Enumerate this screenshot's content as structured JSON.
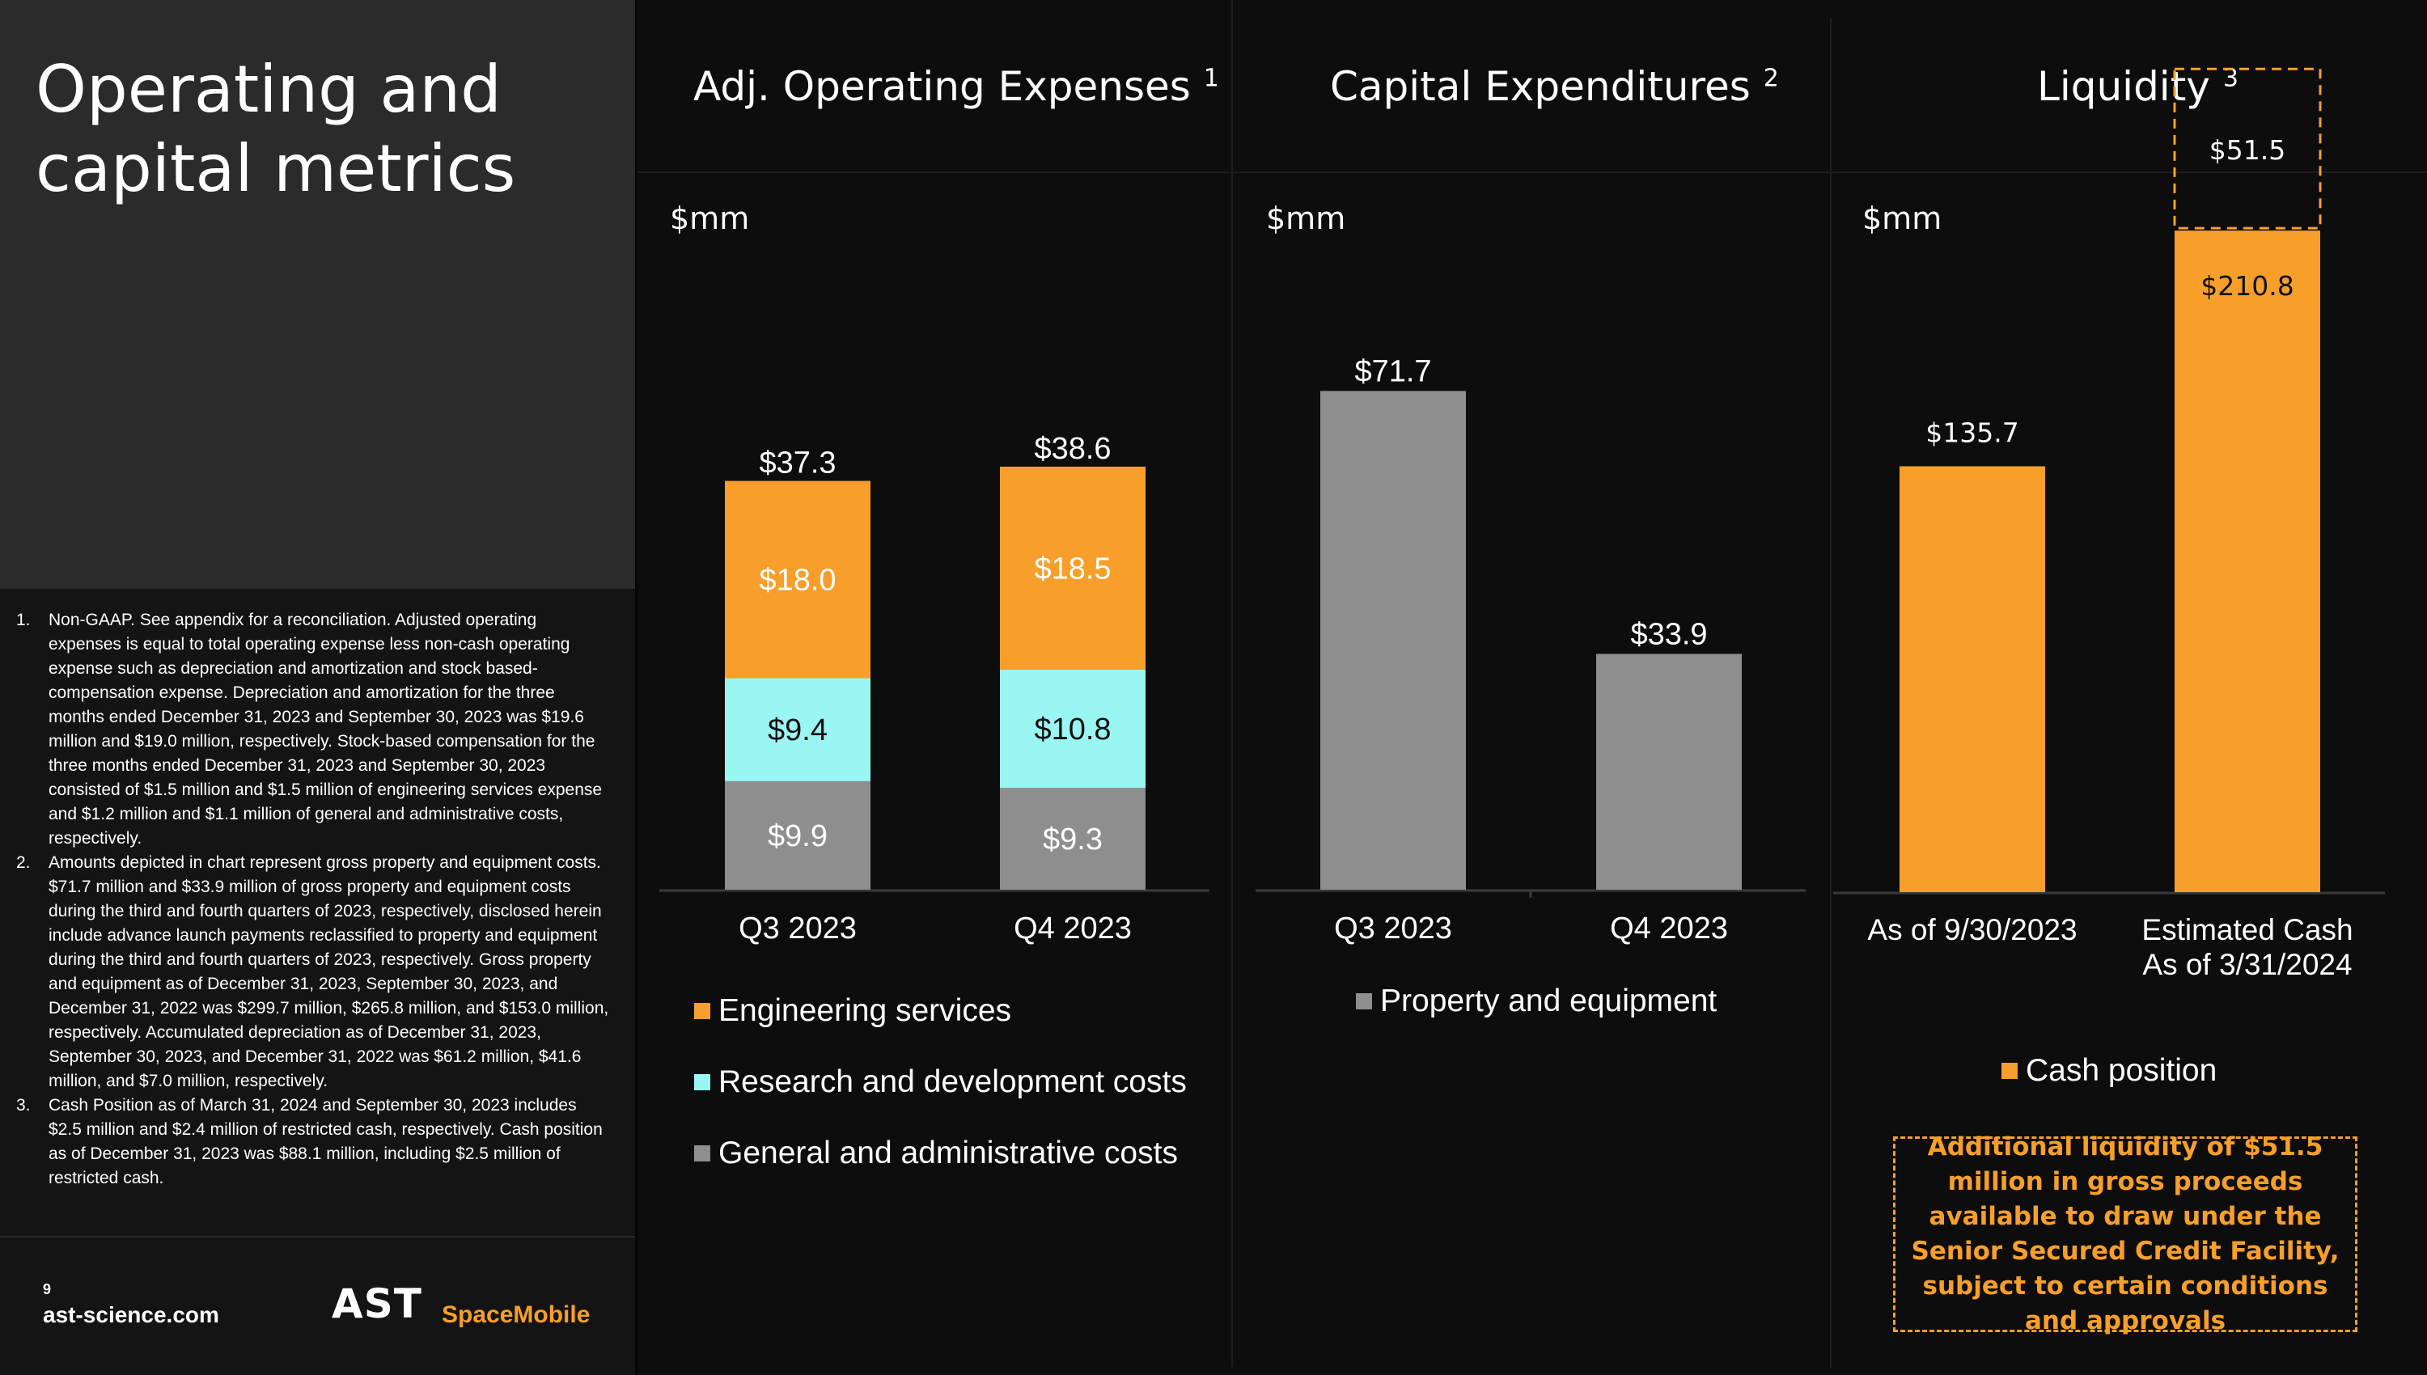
{
  "page": {
    "title": "Operating and capital metrics",
    "page_number": "9",
    "website": "ast-science.com",
    "logo": {
      "mark": "AST",
      "sub": "SpaceMobile",
      "text_color": "#ffffff",
      "accent": "#f79f2a"
    }
  },
  "footnotes": [
    {
      "num": "1.",
      "text": "Non-GAAP. See appendix for a reconciliation. Adjusted operating expenses is equal to total operating expense less non-cash operating expense such as depreciation and amortization and stock based-compensation expense. Depreciation and amortization for the three months ended December 31, 2023 and September 30, 2023 was $19.6 million and $19.0 million, respectively. Stock-based compensation for the three months ended December 31, 2023 and September 30, 2023 consisted of $1.5 million and $1.5 million of engineering services expense and $1.2 million and $1.1 million of general and administrative costs, respectively."
    },
    {
      "num": "2.",
      "text": "Amounts depicted in chart represent gross property and equipment costs. $71.7 million and $33.9 million of gross property and equipment costs during the third and fourth quarters of 2023, respectively, disclosed herein include advance launch payments reclassified to property and equipment during the third and fourth quarters of 2023, respectively. Gross property and equipment as of December 31, 2023, September 30, 2023, and December 31, 2022 was $299.7 million, $265.8 million, and $153.0 million, respectively. Accumulated depreciation as of December 31, 2023, September 30, 2023, and December 31, 2022 was $61.2 million, $41.6 million, and $7.0 million, respectively."
    },
    {
      "num": "3.",
      "text": "Cash Position as of March 31, 2024 and September 30, 2023 includes $2.5 million and $2.4 million of restricted cash, respectively. Cash position as of December 31, 2023 was $88.1 million, including $2.5 million of restricted cash."
    }
  ],
  "colors": {
    "engineering": "#f79f2a",
    "rnd": "#9af6f2",
    "ga": "#8e8e8e",
    "capex": "#8e8e8e",
    "cash": "#f79f2a",
    "dashed_outline": "#f79f2a"
  },
  "chart_data": [
    {
      "type": "bar",
      "stacked": true,
      "title": "Adj. Operating Expenses",
      "title_note": "1",
      "unit_label": "$mm",
      "categories": [
        "Q3 2023",
        "Q4 2023"
      ],
      "series": [
        {
          "name": "General and administrative costs",
          "values": [
            9.9,
            9.3
          ],
          "labels": [
            "$9.9",
            "$9.3"
          ]
        },
        {
          "name": "Research and development costs",
          "values": [
            9.4,
            10.8
          ],
          "labels": [
            "$9.4",
            "$10.8"
          ]
        },
        {
          "name": "Engineering services",
          "values": [
            18.0,
            18.5
          ],
          "labels": [
            "$18.0",
            "$18.5"
          ]
        }
      ],
      "totals": [
        37.3,
        38.6
      ],
      "total_labels": [
        "$37.3",
        "$38.6"
      ],
      "legend": [
        "Engineering services",
        "Research and development costs",
        "General and administrative costs"
      ],
      "legend_position": "bottom"
    },
    {
      "type": "bar",
      "title": "Capital Expenditures",
      "title_note": "2",
      "unit_label": "$mm",
      "categories": [
        "Q3 2023",
        "Q4 2023"
      ],
      "series": [
        {
          "name": "Property and equipment",
          "values": [
            71.7,
            33.9
          ],
          "labels": [
            "$71.7",
            "$33.9"
          ]
        }
      ],
      "legend": [
        "Property and equipment"
      ],
      "legend_position": "bottom"
    },
    {
      "type": "bar",
      "title": "Liquidity",
      "title_note": "3",
      "unit_label": "$mm",
      "categories": [
        "As of 9/30/2023",
        "Estimated Cash As of 3/31/2024"
      ],
      "category_lines": [
        [
          "As of 9/30/2023"
        ],
        [
          "Estimated Cash",
          "As of 3/31/2024"
        ]
      ],
      "series": [
        {
          "name": "Cash position",
          "values": [
            135.7,
            210.8
          ],
          "labels": [
            "$135.7",
            "$210.8"
          ]
        }
      ],
      "additional": {
        "category_index": 1,
        "value": 51.5,
        "label": "$51.5",
        "style": "dashed outline"
      },
      "legend": [
        "Cash position"
      ],
      "legend_position": "bottom",
      "callout": "Additional liquidity of $51.5 million in gross proceeds available to draw under the Senior Secured Credit Facility, subject to certain conditions and approvals"
    }
  ]
}
